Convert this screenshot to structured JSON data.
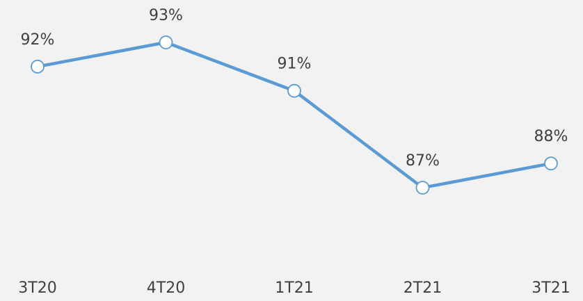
{
  "chart_data": {
    "type": "line",
    "categories": [
      "3T20",
      "4T20",
      "1T21",
      "2T21",
      "3T21"
    ],
    "series": [
      {
        "color": "#5b9bd5",
        "values": [
          92,
          93,
          91,
          87,
          88
        ],
        "value_labels": [
          "92%",
          "93%",
          "91%",
          "87%",
          "88%"
        ]
      }
    ]
  }
}
